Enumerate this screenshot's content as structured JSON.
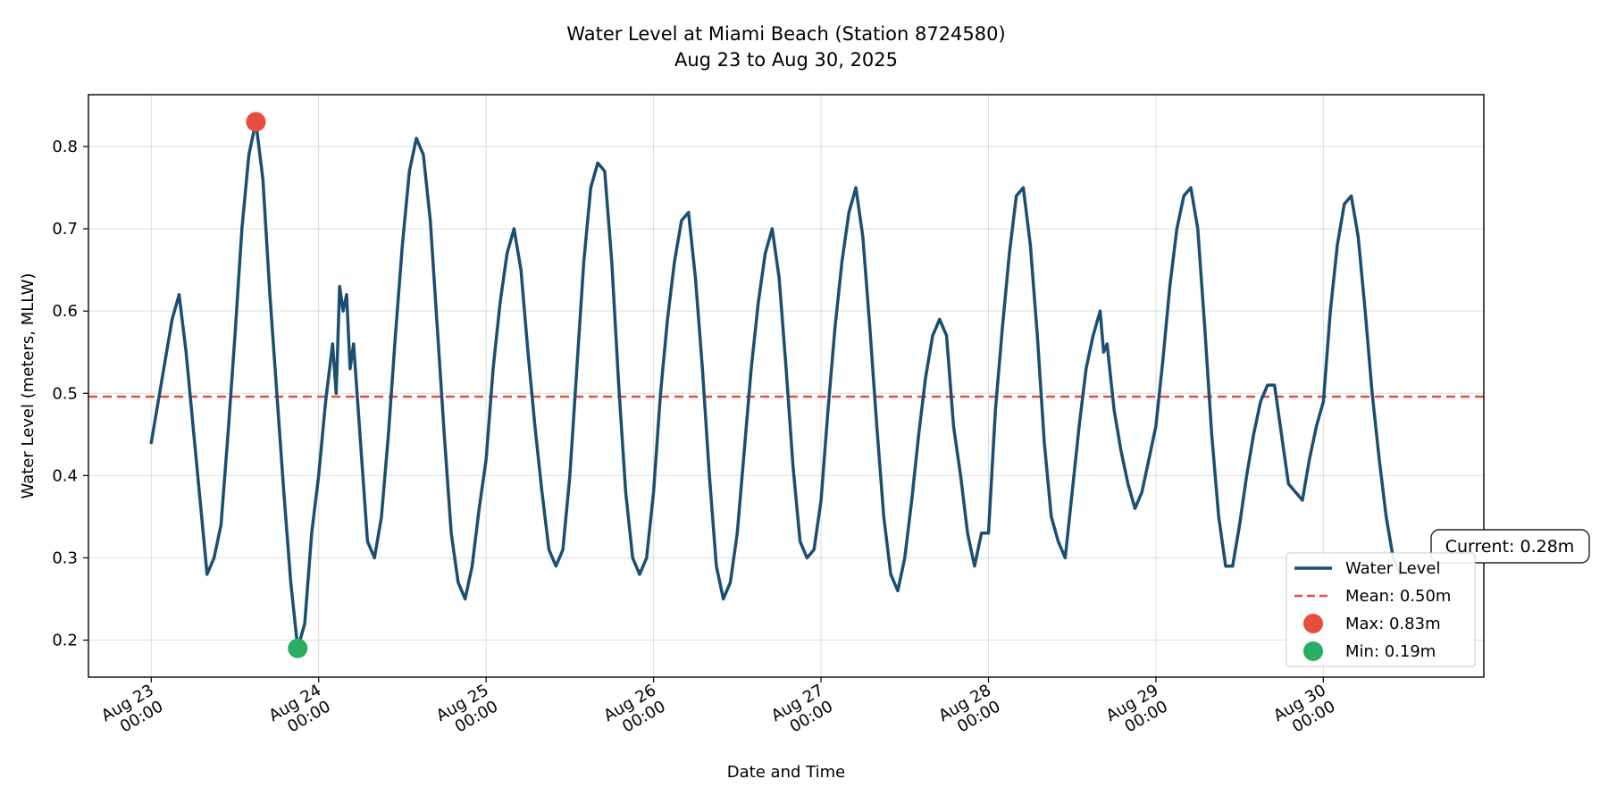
{
  "chart_data": {
    "type": "line",
    "title": "Water Level at Miami Beach (Station 8724580)",
    "subtitle": "Aug 23 to Aug 30, 2025",
    "xlabel": "Date and Time",
    "ylabel": "Water Level (meters, MLLW)",
    "x_tick_labels": [
      {
        "line1": "Aug 23",
        "line2": "00:00"
      },
      {
        "line1": "Aug 24",
        "line2": "00:00"
      },
      {
        "line1": "Aug 25",
        "line2": "00:00"
      },
      {
        "line1": "Aug 26",
        "line2": "00:00"
      },
      {
        "line1": "Aug 27",
        "line2": "00:00"
      },
      {
        "line1": "Aug 28",
        "line2": "00:00"
      },
      {
        "line1": "Aug 29",
        "line2": "00:00"
      },
      {
        "line1": "Aug 30",
        "line2": "00:00"
      }
    ],
    "y_ticks": [
      "0.2",
      "0.3",
      "0.4",
      "0.5",
      "0.6",
      "0.7",
      "0.8"
    ],
    "xlim": [
      "2025-08-22 15:00",
      "2025-08-30 23:00"
    ],
    "ylim": [
      0.155,
      0.863
    ],
    "grid": true,
    "legend_position": "lower-right",
    "series": [
      {
        "name": "Water Level",
        "color": "#1a4e72",
        "points": [
          [
            "2025-08-23 00:00",
            0.44
          ],
          [
            "2025-08-23 02:00",
            0.54
          ],
          [
            "2025-08-23 03:00",
            0.59
          ],
          [
            "2025-08-23 04:00",
            0.62
          ],
          [
            "2025-08-23 05:00",
            0.55
          ],
          [
            "2025-08-23 06:00",
            0.46
          ],
          [
            "2025-08-23 07:00",
            0.37
          ],
          [
            "2025-08-23 08:00",
            0.28
          ],
          [
            "2025-08-23 09:00",
            0.3
          ],
          [
            "2025-08-23 10:00",
            0.34
          ],
          [
            "2025-08-23 11:00",
            0.45
          ],
          [
            "2025-08-23 12:00",
            0.57
          ],
          [
            "2025-08-23 13:00",
            0.7
          ],
          [
            "2025-08-23 14:00",
            0.79
          ],
          [
            "2025-08-23 15:00",
            0.83
          ],
          [
            "2025-08-23 16:00",
            0.76
          ],
          [
            "2025-08-23 17:00",
            0.62
          ],
          [
            "2025-08-23 18:00",
            0.5
          ],
          [
            "2025-08-23 19:00",
            0.38
          ],
          [
            "2025-08-23 20:00",
            0.27
          ],
          [
            "2025-08-23 21:00",
            0.19
          ],
          [
            "2025-08-23 22:00",
            0.22
          ],
          [
            "2025-08-23 23:00",
            0.33
          ],
          [
            "2025-08-24 00:00",
            0.4
          ],
          [
            "2025-08-24 01:00",
            0.49
          ],
          [
            "2025-08-24 02:00",
            0.56
          ],
          [
            "2025-08-24 02:30",
            0.5
          ],
          [
            "2025-08-24 03:00",
            0.63
          ],
          [
            "2025-08-24 03:30",
            0.6
          ],
          [
            "2025-08-24 04:00",
            0.62
          ],
          [
            "2025-08-24 04:30",
            0.53
          ],
          [
            "2025-08-24 05:00",
            0.56
          ],
          [
            "2025-08-24 06:00",
            0.44
          ],
          [
            "2025-08-24 07:00",
            0.32
          ],
          [
            "2025-08-24 08:00",
            0.3
          ],
          [
            "2025-08-24 09:00",
            0.35
          ],
          [
            "2025-08-24 10:00",
            0.45
          ],
          [
            "2025-08-24 11:00",
            0.57
          ],
          [
            "2025-08-24 12:00",
            0.68
          ],
          [
            "2025-08-24 13:00",
            0.77
          ],
          [
            "2025-08-24 14:00",
            0.81
          ],
          [
            "2025-08-24 15:00",
            0.79
          ],
          [
            "2025-08-24 16:00",
            0.71
          ],
          [
            "2025-08-24 17:00",
            0.58
          ],
          [
            "2025-08-24 18:00",
            0.45
          ],
          [
            "2025-08-24 19:00",
            0.33
          ],
          [
            "2025-08-24 20:00",
            0.27
          ],
          [
            "2025-08-24 21:00",
            0.25
          ],
          [
            "2025-08-24 22:00",
            0.29
          ],
          [
            "2025-08-24 23:00",
            0.36
          ],
          [
            "2025-08-25 00:00",
            0.42
          ],
          [
            "2025-08-25 01:00",
            0.53
          ],
          [
            "2025-08-25 02:00",
            0.61
          ],
          [
            "2025-08-25 03:00",
            0.67
          ],
          [
            "2025-08-25 04:00",
            0.7
          ],
          [
            "2025-08-25 05:00",
            0.65
          ],
          [
            "2025-08-25 06:00",
            0.55
          ],
          [
            "2025-08-25 07:00",
            0.46
          ],
          [
            "2025-08-25 08:00",
            0.38
          ],
          [
            "2025-08-25 09:00",
            0.31
          ],
          [
            "2025-08-25 10:00",
            0.29
          ],
          [
            "2025-08-25 11:00",
            0.31
          ],
          [
            "2025-08-25 12:00",
            0.4
          ],
          [
            "2025-08-25 13:00",
            0.53
          ],
          [
            "2025-08-25 14:00",
            0.66
          ],
          [
            "2025-08-25 15:00",
            0.75
          ],
          [
            "2025-08-25 16:00",
            0.78
          ],
          [
            "2025-08-25 17:00",
            0.77
          ],
          [
            "2025-08-25 18:00",
            0.66
          ],
          [
            "2025-08-25 19:00",
            0.51
          ],
          [
            "2025-08-25 20:00",
            0.38
          ],
          [
            "2025-08-25 21:00",
            0.3
          ],
          [
            "2025-08-25 22:00",
            0.28
          ],
          [
            "2025-08-25 23:00",
            0.3
          ],
          [
            "2025-08-26 00:00",
            0.38
          ],
          [
            "2025-08-26 01:00",
            0.5
          ],
          [
            "2025-08-26 02:00",
            0.59
          ],
          [
            "2025-08-26 03:00",
            0.66
          ],
          [
            "2025-08-26 04:00",
            0.71
          ],
          [
            "2025-08-26 05:00",
            0.72
          ],
          [
            "2025-08-26 06:00",
            0.64
          ],
          [
            "2025-08-26 07:00",
            0.53
          ],
          [
            "2025-08-26 08:00",
            0.4
          ],
          [
            "2025-08-26 09:00",
            0.29
          ],
          [
            "2025-08-26 10:00",
            0.25
          ],
          [
            "2025-08-26 11:00",
            0.27
          ],
          [
            "2025-08-26 12:00",
            0.33
          ],
          [
            "2025-08-26 13:00",
            0.43
          ],
          [
            "2025-08-26 14:00",
            0.53
          ],
          [
            "2025-08-26 15:00",
            0.61
          ],
          [
            "2025-08-26 16:00",
            0.67
          ],
          [
            "2025-08-26 17:00",
            0.7
          ],
          [
            "2025-08-26 18:00",
            0.64
          ],
          [
            "2025-08-26 19:00",
            0.53
          ],
          [
            "2025-08-26 20:00",
            0.41
          ],
          [
            "2025-08-26 21:00",
            0.32
          ],
          [
            "2025-08-26 22:00",
            0.3
          ],
          [
            "2025-08-26 23:00",
            0.31
          ],
          [
            "2025-08-27 00:00",
            0.37
          ],
          [
            "2025-08-27 01:00",
            0.48
          ],
          [
            "2025-08-27 02:00",
            0.58
          ],
          [
            "2025-08-27 03:00",
            0.66
          ],
          [
            "2025-08-27 04:00",
            0.72
          ],
          [
            "2025-08-27 05:00",
            0.75
          ],
          [
            "2025-08-27 06:00",
            0.69
          ],
          [
            "2025-08-27 07:00",
            0.58
          ],
          [
            "2025-08-27 08:00",
            0.46
          ],
          [
            "2025-08-27 09:00",
            0.35
          ],
          [
            "2025-08-27 10:00",
            0.28
          ],
          [
            "2025-08-27 11:00",
            0.26
          ],
          [
            "2025-08-27 12:00",
            0.3
          ],
          [
            "2025-08-27 13:00",
            0.37
          ],
          [
            "2025-08-27 14:00",
            0.45
          ],
          [
            "2025-08-27 15:00",
            0.52
          ],
          [
            "2025-08-27 16:00",
            0.57
          ],
          [
            "2025-08-27 17:00",
            0.59
          ],
          [
            "2025-08-27 18:00",
            0.57
          ],
          [
            "2025-08-27 19:00",
            0.46
          ],
          [
            "2025-08-27 20:00",
            0.4
          ],
          [
            "2025-08-27 21:00",
            0.33
          ],
          [
            "2025-08-27 22:00",
            0.29
          ],
          [
            "2025-08-27 23:00",
            0.33
          ],
          [
            "2025-08-28 00:00",
            0.33
          ],
          [
            "2025-08-28 01:00",
            0.48
          ],
          [
            "2025-08-28 02:00",
            0.58
          ],
          [
            "2025-08-28 03:00",
            0.67
          ],
          [
            "2025-08-28 04:00",
            0.74
          ],
          [
            "2025-08-28 05:00",
            0.75
          ],
          [
            "2025-08-28 06:00",
            0.68
          ],
          [
            "2025-08-28 07:00",
            0.57
          ],
          [
            "2025-08-28 08:00",
            0.44
          ],
          [
            "2025-08-28 09:00",
            0.35
          ],
          [
            "2025-08-28 10:00",
            0.32
          ],
          [
            "2025-08-28 11:00",
            0.3
          ],
          [
            "2025-08-28 12:00",
            0.38
          ],
          [
            "2025-08-28 13:00",
            0.46
          ],
          [
            "2025-08-28 14:00",
            0.53
          ],
          [
            "2025-08-28 15:00",
            0.57
          ],
          [
            "2025-08-28 16:00",
            0.6
          ],
          [
            "2025-08-28 16:30",
            0.55
          ],
          [
            "2025-08-28 17:00",
            0.56
          ],
          [
            "2025-08-28 18:00",
            0.48
          ],
          [
            "2025-08-28 19:00",
            0.43
          ],
          [
            "2025-08-28 20:00",
            0.39
          ],
          [
            "2025-08-28 21:00",
            0.36
          ],
          [
            "2025-08-28 22:00",
            0.38
          ],
          [
            "2025-08-28 23:00",
            0.42
          ],
          [
            "2025-08-29 00:00",
            0.46
          ],
          [
            "2025-08-29 01:00",
            0.54
          ],
          [
            "2025-08-29 02:00",
            0.63
          ],
          [
            "2025-08-29 03:00",
            0.7
          ],
          [
            "2025-08-29 04:00",
            0.74
          ],
          [
            "2025-08-29 05:00",
            0.75
          ],
          [
            "2025-08-29 06:00",
            0.7
          ],
          [
            "2025-08-29 07:00",
            0.58
          ],
          [
            "2025-08-29 08:00",
            0.45
          ],
          [
            "2025-08-29 09:00",
            0.35
          ],
          [
            "2025-08-29 10:00",
            0.29
          ],
          [
            "2025-08-29 11:00",
            0.29
          ],
          [
            "2025-08-29 12:00",
            0.34
          ],
          [
            "2025-08-29 13:00",
            0.4
          ],
          [
            "2025-08-29 14:00",
            0.45
          ],
          [
            "2025-08-29 15:00",
            0.49
          ],
          [
            "2025-08-29 16:00",
            0.51
          ],
          [
            "2025-08-29 17:00",
            0.51
          ],
          [
            "2025-08-29 18:00",
            0.45
          ],
          [
            "2025-08-29 19:00",
            0.39
          ],
          [
            "2025-08-29 20:00",
            0.38
          ],
          [
            "2025-08-29 21:00",
            0.37
          ],
          [
            "2025-08-29 22:00",
            0.42
          ],
          [
            "2025-08-29 23:00",
            0.46
          ],
          [
            "2025-08-30 00:00",
            0.49
          ],
          [
            "2025-08-30 01:00",
            0.6
          ],
          [
            "2025-08-30 02:00",
            0.68
          ],
          [
            "2025-08-30 03:00",
            0.73
          ],
          [
            "2025-08-30 04:00",
            0.74
          ],
          [
            "2025-08-30 05:00",
            0.69
          ],
          [
            "2025-08-30 06:00",
            0.6
          ],
          [
            "2025-08-30 07:00",
            0.5
          ],
          [
            "2025-08-30 08:00",
            0.42
          ],
          [
            "2025-08-30 09:00",
            0.35
          ],
          [
            "2025-08-30 10:00",
            0.3
          ],
          [
            "2025-08-30 11:00",
            0.28
          ]
        ]
      },
      {
        "name": "Mean: 0.50m",
        "color": "#e74c3c",
        "style": "dashed",
        "value": 0.496
      }
    ],
    "markers": [
      {
        "name": "Max: 0.83m",
        "color": "#e74c3c",
        "x": "2025-08-23 15:00",
        "y": 0.83
      },
      {
        "name": "Min: 0.19m",
        "color": "#27ae60",
        "x": "2025-08-23 21:00",
        "y": 0.19
      }
    ],
    "annotation": {
      "text": "Current: 0.28m",
      "x": "2025-08-30 11:00",
      "y": 0.28
    }
  }
}
